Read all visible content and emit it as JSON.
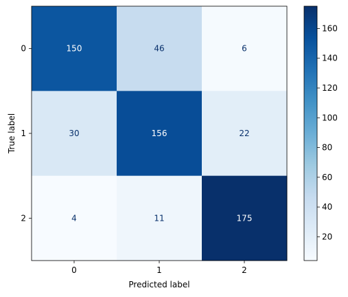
{
  "chart_data": {
    "type": "heatmap",
    "title": "",
    "xlabel": "Predicted label",
    "ylabel": "True label",
    "x_categories": [
      "0",
      "1",
      "2"
    ],
    "y_categories": [
      "0",
      "1",
      "2"
    ],
    "matrix": [
      [
        150,
        46,
        6
      ],
      [
        30,
        156,
        22
      ],
      [
        4,
        11,
        175
      ]
    ],
    "colormap": "Blues",
    "color_range": [
      4,
      175
    ],
    "colorbar_ticks": [
      "20",
      "40",
      "60",
      "80",
      "100",
      "120",
      "140",
      "160"
    ],
    "colorbar_tick_values": [
      20,
      40,
      60,
      80,
      100,
      120,
      140,
      160
    ],
    "grid": false,
    "label_colors": {
      "dark_cell_text": "#ffffff",
      "light_cell_text": "#08306b"
    }
  }
}
